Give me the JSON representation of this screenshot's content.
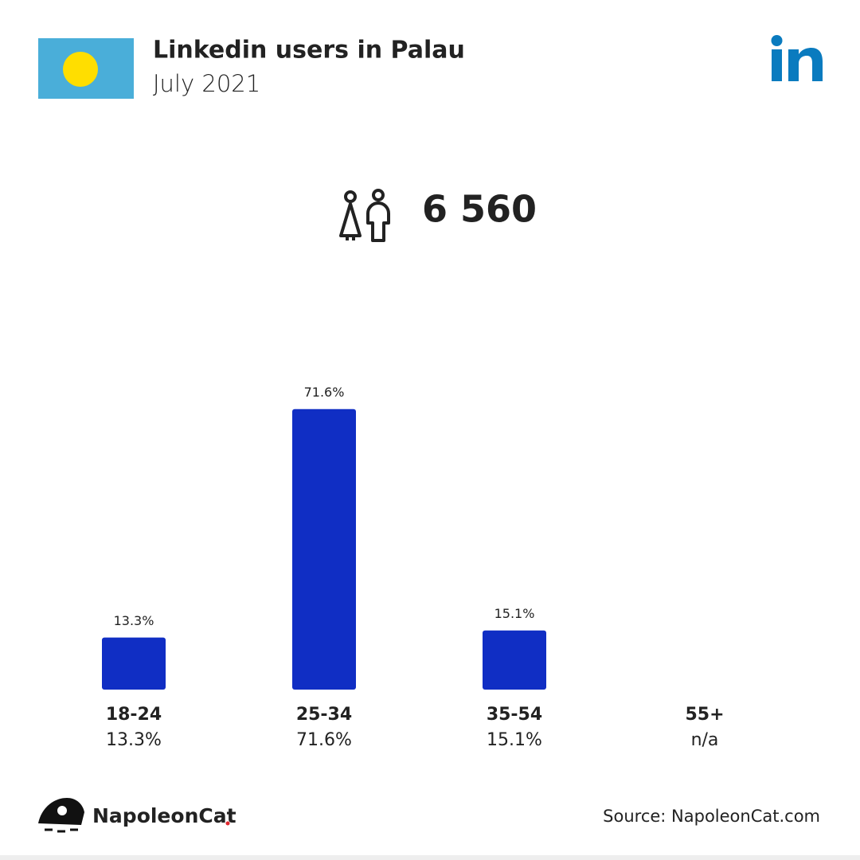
{
  "header": {
    "title": "Linkedin users in Palau",
    "subtitle": "July 2021"
  },
  "total_users": "6 560",
  "chart_data": {
    "type": "bar",
    "categories": [
      "18-24",
      "25-34",
      "35-54",
      "55+"
    ],
    "values": [
      13.3,
      71.6,
      15.1,
      null
    ],
    "value_labels": [
      "13.3%",
      "71.6%",
      "15.1%",
      "n/a"
    ],
    "color": "#102ec4"
  },
  "footer": {
    "brand": "NapoleonCat",
    "source": "Source: NapoleonCat.com"
  }
}
